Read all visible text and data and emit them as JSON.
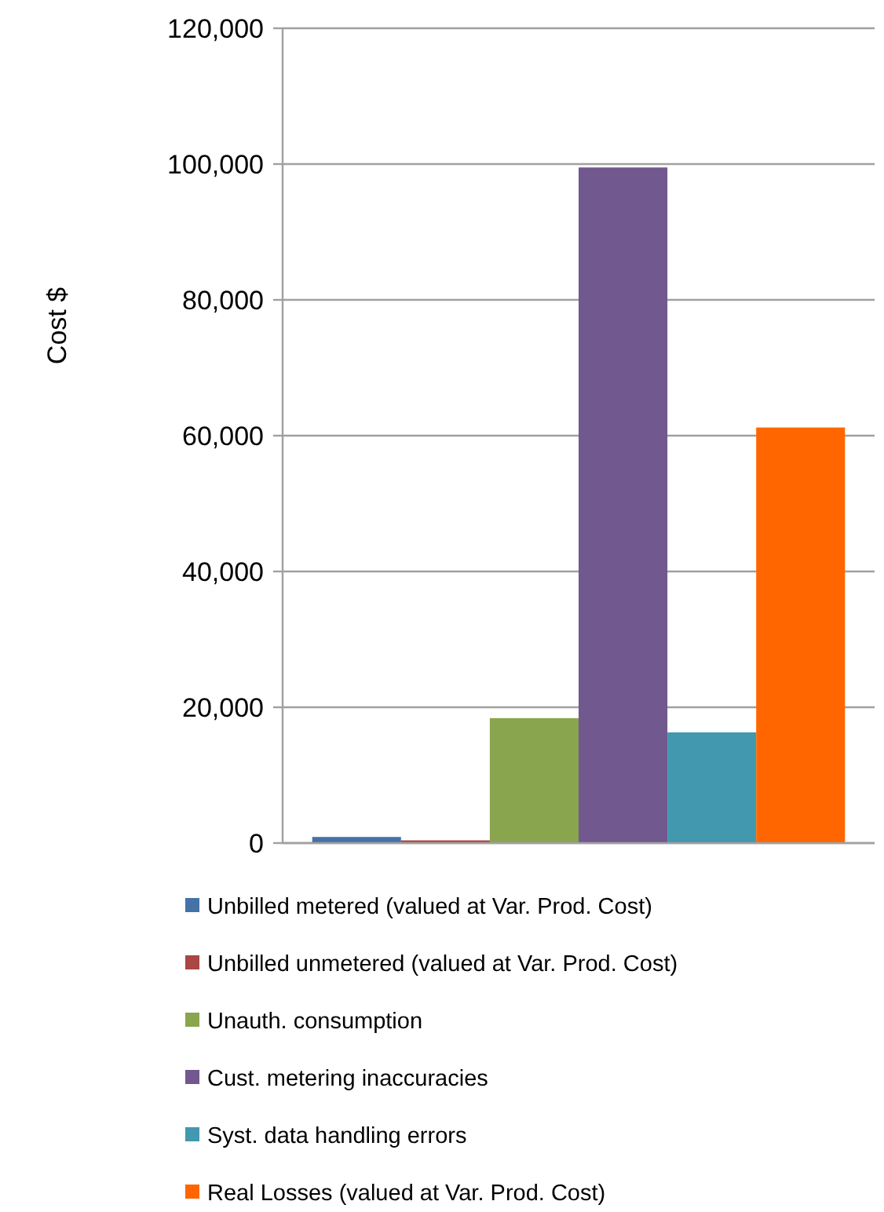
{
  "chart_data": {
    "type": "bar",
    "ylabel": "Cost $",
    "categories": [
      null
    ],
    "series": [
      {
        "name": "Unbilled metered (valued at Var. Prod. Cost)",
        "color": "#4572a7",
        "values": [
          900
        ]
      },
      {
        "name": "Unbilled unmetered (valued at Var. Prod. Cost)",
        "color": "#aa4643",
        "values": [
          400
        ]
      },
      {
        "name": "Unauth. consumption",
        "color": "#89a54e",
        "values": [
          18400
        ]
      },
      {
        "name": "Cust. metering inaccuracies",
        "color": "#71588f",
        "values": [
          99500
        ]
      },
      {
        "name": "Syst. data handling errors",
        "color": "#4198af",
        "values": [
          16300
        ]
      },
      {
        "name": "Real Losses (valued at Var. Prod. Cost)",
        "color": "#ff6600",
        "values": [
          61200
        ]
      }
    ],
    "ylim": [
      0,
      120000
    ],
    "yticks": [
      {
        "value": 0,
        "label": "0"
      },
      {
        "value": 20000,
        "label": "20,000"
      },
      {
        "value": 40000,
        "label": "40,000"
      },
      {
        "value": 60000,
        "label": "60,000"
      },
      {
        "value": 80000,
        "label": "80,000"
      },
      {
        "value": 100000,
        "label": "100,000"
      },
      {
        "value": 120000,
        "label": "120,000"
      }
    ],
    "grid": "y",
    "legend": "bottom"
  }
}
